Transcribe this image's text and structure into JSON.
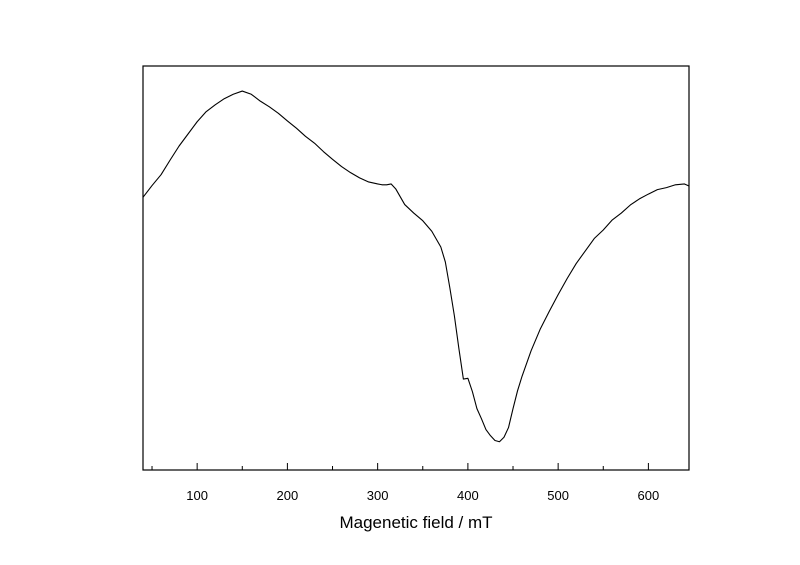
{
  "chart_data": {
    "type": "line",
    "title": "",
    "xlabel": "Magenetic field / mT",
    "ylabel": "",
    "xlim": [
      40,
      645
    ],
    "ylim": [
      0,
      100
    ],
    "grid": false,
    "legend": "none",
    "x_major_ticks": [
      100,
      200,
      300,
      400,
      500,
      600
    ],
    "x_minor_ticks": [
      50,
      150,
      250,
      350,
      450,
      550
    ],
    "line_color": "#000000",
    "series": [
      {
        "x": [
          40,
          50,
          60,
          70,
          80,
          90,
          100,
          110,
          120,
          130,
          140,
          150,
          160,
          170,
          180,
          190,
          200,
          210,
          220,
          230,
          240,
          250,
          260,
          270,
          280,
          290,
          300,
          305,
          310,
          315,
          320,
          330,
          340,
          350,
          360,
          370,
          375,
          380,
          385,
          390,
          395,
          400,
          405,
          410,
          415,
          420,
          425,
          430,
          435,
          440,
          445,
          450,
          455,
          460,
          470,
          480,
          490,
          500,
          510,
          520,
          530,
          540,
          550,
          560,
          570,
          580,
          590,
          600,
          610,
          620,
          630,
          640,
          645
        ],
        "y": [
          67.5,
          70.4,
          73.1,
          76.7,
          80.2,
          83.2,
          86.2,
          88.7,
          90.4,
          91.9,
          93.0,
          93.8,
          93.0,
          91.3,
          89.9,
          88.3,
          86.4,
          84.6,
          82.6,
          80.9,
          78.8,
          76.9,
          75.1,
          73.6,
          72.3,
          71.3,
          70.8,
          70.6,
          70.6,
          70.8,
          69.6,
          65.7,
          63.6,
          61.7,
          59.1,
          55.2,
          51.5,
          45.1,
          38.2,
          30.1,
          22.5,
          22.7,
          19.4,
          15.2,
          12.7,
          10.0,
          8.5,
          7.3,
          7.0,
          8.1,
          10.5,
          15.2,
          19.6,
          23.2,
          29.5,
          34.8,
          39.2,
          43.4,
          47.4,
          51.1,
          54.2,
          57.3,
          59.4,
          61.9,
          63.6,
          65.6,
          67.1,
          68.3,
          69.4,
          69.9,
          70.6,
          70.8,
          70.3
        ]
      }
    ]
  }
}
